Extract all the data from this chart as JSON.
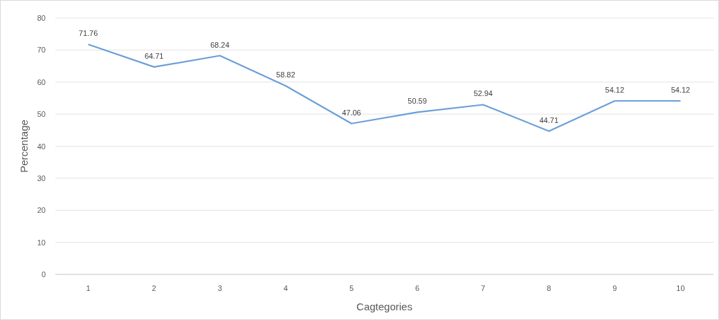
{
  "chart_data": {
    "type": "line",
    "xlabel": "Cagtegories",
    "ylabel": "Percentage",
    "categories": [
      "1",
      "2",
      "3",
      "4",
      "5",
      "6",
      "7",
      "8",
      "9",
      "10"
    ],
    "series": [
      {
        "color": "#6a9fd8",
        "values": [
          71.76,
          64.71,
          68.24,
          58.82,
          47.06,
          50.59,
          52.94,
          44.71,
          54.12,
          54.12
        ]
      }
    ],
    "ylim": [
      0,
      80
    ],
    "yticks": [
      0,
      10,
      20,
      30,
      40,
      50,
      60,
      70,
      80
    ],
    "grid": "y",
    "data_labels": true,
    "marker": "none",
    "line_style": "solid"
  }
}
